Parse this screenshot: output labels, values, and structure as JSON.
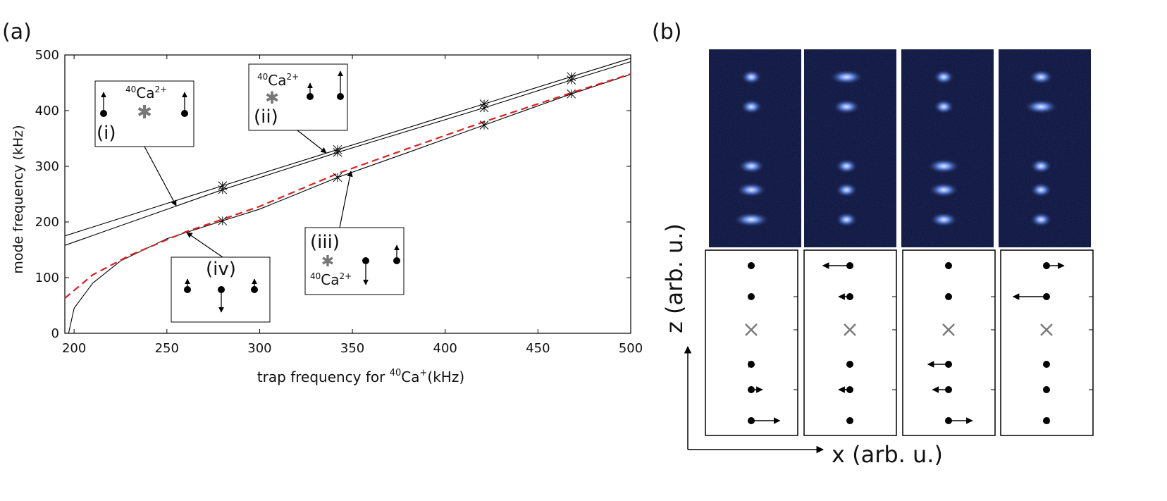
{
  "panel_a": {
    "label": "(a)",
    "xlabel_pre": "trap frequency for ",
    "xlabel_sup": "40",
    "xlabel_ion": "Ca",
    "xlabel_ion_sup": "+",
    "xlabel_post": "(kHz)",
    "ylabel": "mode frequency (kHz)",
    "insets": [
      {
        "label": "(i)",
        "iso_sup": "40",
        "iso": "Ca",
        "charge": "2+"
      },
      {
        "label": "(ii)",
        "iso_sup": "40",
        "iso": "Ca",
        "charge": "2+"
      },
      {
        "label": "(iii)",
        "iso_sup": "40",
        "iso": "Ca",
        "charge": "2+"
      },
      {
        "label": "(iv)"
      }
    ]
  },
  "panel_b": {
    "label": "(b)",
    "zlabel": "z (arb. u.)",
    "xlabel": "x (arb. u.)"
  },
  "colors": {
    "dashed_curve": "#e02020",
    "star": "#7a7a7a",
    "image_bg": "#0a1030",
    "ion_glow": "#3a6bff"
  },
  "chart_data": {
    "type": "line",
    "xlim": [
      195,
      500
    ],
    "ylim": [
      0,
      500
    ],
    "xticks": [
      200,
      250,
      300,
      350,
      400,
      450,
      500
    ],
    "yticks": [
      0,
      100,
      200,
      300,
      400,
      500
    ],
    "series": [
      {
        "x": [
          195,
          280,
          342,
          421,
          468,
          500
        ],
        "y": [
          175,
          265,
          330,
          412,
          461,
          494
        ],
        "style": "solid"
      },
      {
        "x": [
          195,
          280,
          342,
          421,
          468,
          500
        ],
        "y": [
          158,
          258,
          325,
          405,
          455,
          488
        ],
        "style": "solid"
      },
      {
        "x": [
          197,
          200,
          210,
          225,
          250,
          280,
          300,
          342,
          380,
          421,
          468,
          500
        ],
        "y": [
          0,
          45,
          90,
          130,
          170,
          202,
          223,
          280,
          325,
          374,
          430,
          465
        ],
        "style": "solid"
      },
      {
        "x": [
          195,
          210,
          230,
          260,
          280,
          300,
          342,
          380,
          421,
          468,
          500
        ],
        "y": [
          63,
          105,
          140,
          182,
          205,
          228,
          287,
          332,
          380,
          432,
          466
        ],
        "style": "dashed"
      }
    ],
    "markers": [
      {
        "x": 280,
        "y": 265
      },
      {
        "x": 280,
        "y": 258
      },
      {
        "x": 280,
        "y": 202
      },
      {
        "x": 342,
        "y": 330
      },
      {
        "x": 342,
        "y": 325
      },
      {
        "x": 342,
        "y": 280
      },
      {
        "x": 421,
        "y": 412
      },
      {
        "x": 421,
        "y": 405
      },
      {
        "x": 421,
        "y": 374
      },
      {
        "x": 468,
        "y": 461
      },
      {
        "x": 468,
        "y": 455
      },
      {
        "x": 468,
        "y": 430
      }
    ]
  },
  "ion_images": [
    {
      "ions": [
        0.14,
        0.29,
        0.59,
        0.71,
        0.86
      ],
      "smear": [
        0.5,
        0.6,
        1.0,
        1.3,
        1.8
      ]
    },
    {
      "ions": [
        0.14,
        0.29,
        0.59,
        0.71,
        0.86
      ],
      "smear": [
        1.6,
        1.1,
        0.6,
        0.6,
        0.6
      ]
    },
    {
      "ions": [
        0.14,
        0.29,
        0.59,
        0.71,
        0.86
      ],
      "smear": [
        0.5,
        0.5,
        1.5,
        1.3,
        1.1
      ]
    },
    {
      "ions": [
        0.14,
        0.29,
        0.59,
        0.71,
        0.86
      ],
      "smear": [
        0.8,
        1.6,
        0.6,
        0.6,
        0.6
      ]
    }
  ],
  "mode_patterns": [
    [
      0.0,
      0.0,
      "star",
      0.1,
      0.35,
      0.9
    ],
    [
      -0.85,
      -0.35,
      "star",
      0.0,
      -0.35,
      0.0
    ],
    [
      0.0,
      0.0,
      "star",
      -0.65,
      -0.5,
      0.75
    ],
    [
      0.55,
      -1.05,
      "star",
      0.0,
      0.0,
      -0.1
    ]
  ]
}
